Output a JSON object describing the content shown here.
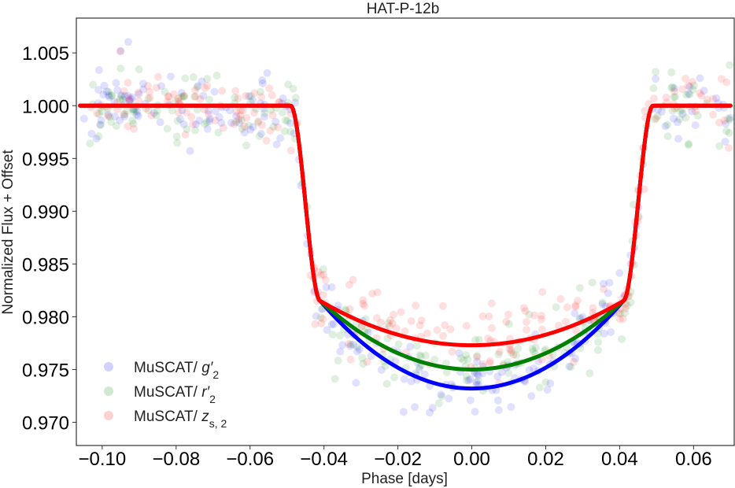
{
  "chart_data": {
    "type": "scatter",
    "title": "HAT-P-12b",
    "xlabel": "Phase [days]",
    "ylabel": "Normalized Flux + Offset",
    "xlim": [
      -0.107,
      0.071
    ],
    "ylim": [
      0.9678,
      1.0083
    ],
    "xticks": [
      -0.1,
      -0.08,
      -0.06,
      -0.04,
      -0.02,
      0.0,
      0.02,
      0.04,
      0.06
    ],
    "xtick_labels": [
      "−0.10",
      "−0.08",
      "−0.06",
      "−0.04",
      "−0.02",
      "0.00",
      "0.02",
      "0.04",
      "0.06"
    ],
    "yticks": [
      0.97,
      0.975,
      0.98,
      0.985,
      0.99,
      0.995,
      1.0,
      1.005
    ],
    "ytick_labels": [
      "0.970",
      "0.975",
      "0.980",
      "0.985",
      "0.990",
      "0.995",
      "1.000",
      "1.005"
    ],
    "grid": false,
    "legend_position": "bottom-left",
    "transit": {
      "t14_half": 0.049,
      "t23_half": 0.041,
      "ingress_end_flux": 0.9815
    },
    "series": [
      {
        "name": "MuSCAT/ g′2",
        "name_parts": {
          "main": "MuSCAT/ ",
          "italic": "g′",
          "sub": "2"
        },
        "color": "#0000ff",
        "model_depth_center": 0.9732,
        "seed": 11
      },
      {
        "name": "MuSCAT/ r′2",
        "name_parts": {
          "main": "MuSCAT/ ",
          "italic": "r′",
          "sub": "2"
        },
        "color": "#008000",
        "model_depth_center": 0.975,
        "seed": 23
      },
      {
        "name": "MuSCAT/ zs,2",
        "name_parts": {
          "main": "MuSCAT/ ",
          "italic": "z",
          "sub": "s, 2"
        },
        "color": "#ff0000",
        "model_depth_center": 0.9773,
        "seed": 37
      }
    ],
    "scatter_alpha": 0.12,
    "points_per_series": 240,
    "scatter_noise_sigma": 0.0017
  }
}
